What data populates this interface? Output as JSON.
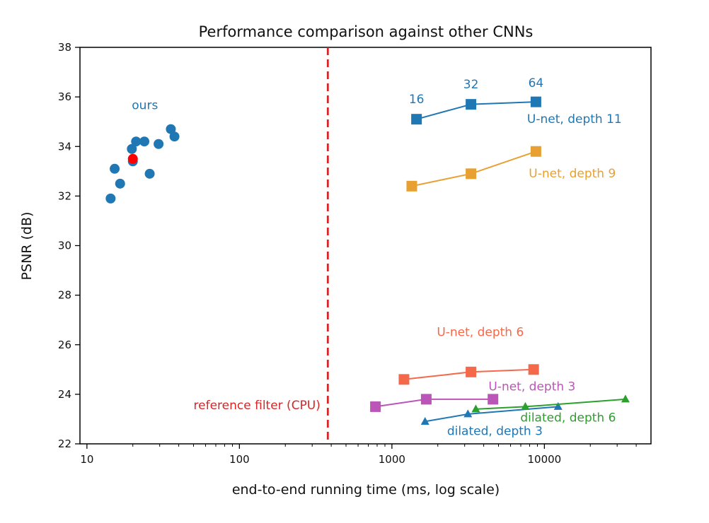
{
  "chart_data": {
    "type": "scatter",
    "title": "Performance comparison against other CNNs",
    "xlabel": "end-to-end running time (ms, log scale)",
    "ylabel": "PSNR (dB)",
    "x_scale": "log",
    "xlim": [
      9,
      50000
    ],
    "ylim": [
      22,
      38
    ],
    "x_ticks": [
      10,
      100,
      1000,
      10000
    ],
    "x_tick_labels": [
      "10",
      "100",
      "1000",
      "10000"
    ],
    "y_ticks": [
      22,
      24,
      26,
      28,
      30,
      32,
      34,
      36,
      38
    ],
    "y_tick_labels": [
      "22",
      "24",
      "26",
      "28",
      "30",
      "32",
      "34",
      "36",
      "38"
    ],
    "grid": false,
    "legend": "none",
    "reference": {
      "label": "reference filter (CPU)",
      "x": 380,
      "color": "#d62728"
    },
    "series": [
      {
        "name": "ours",
        "marker": "circle",
        "connected": false,
        "color": "#1f77b4",
        "points": [
          [
            14.3,
            31.9
          ],
          [
            15.2,
            33.1
          ],
          [
            16.5,
            32.5
          ],
          [
            19.7,
            33.9
          ],
          [
            20.0,
            33.4
          ],
          [
            21.0,
            34.2
          ],
          [
            23.8,
            34.2
          ],
          [
            25.8,
            32.9
          ],
          [
            29.5,
            34.1
          ],
          [
            35.5,
            34.7
          ],
          [
            37.5,
            34.4
          ]
        ]
      },
      {
        "name": "ours (highlighted)",
        "marker": "circle",
        "connected": false,
        "color": "#ff0000",
        "points": [
          [
            20.0,
            33.5
          ]
        ]
      },
      {
        "name": "U-net, depth 11",
        "marker": "square",
        "connected": true,
        "color": "#1f77b4",
        "points": [
          [
            1450,
            35.1
          ],
          [
            3300,
            35.7
          ],
          [
            8800,
            35.8
          ]
        ],
        "point_labels": [
          "16",
          "32",
          "64"
        ]
      },
      {
        "name": "U-net, depth 9",
        "marker": "square",
        "connected": true,
        "color": "#e8a033",
        "points": [
          [
            1350,
            32.4
          ],
          [
            3300,
            32.9
          ],
          [
            8800,
            33.8
          ]
        ]
      },
      {
        "name": "U-net, depth 6",
        "marker": "square",
        "connected": true,
        "color": "#f4694a",
        "points": [
          [
            1200,
            24.6
          ],
          [
            3300,
            24.9
          ],
          [
            8500,
            25.0
          ]
        ]
      },
      {
        "name": "U-net, depth 3",
        "marker": "square",
        "connected": true,
        "color": "#bb55b8",
        "points": [
          [
            780,
            23.5
          ],
          [
            1680,
            23.8
          ],
          [
            4600,
            23.8
          ]
        ]
      },
      {
        "name": "dilated, depth 3",
        "marker": "triangle",
        "connected": true,
        "color": "#1f77b4",
        "points": [
          [
            1650,
            22.9
          ],
          [
            3150,
            23.2
          ],
          [
            12300,
            23.5
          ]
        ]
      },
      {
        "name": "dilated, depth 6",
        "marker": "triangle",
        "connected": true,
        "color": "#2ca02c",
        "points": [
          [
            3550,
            23.4
          ],
          [
            7500,
            23.5
          ],
          [
            34000,
            23.8
          ]
        ]
      }
    ],
    "annotations": [
      {
        "text": "ours",
        "x": 24,
        "y": 35.5,
        "color": "#1f77b4",
        "anchor": "middle"
      },
      {
        "text": "16",
        "x": 1450,
        "y": 35.75,
        "color": "#1f77b4",
        "anchor": "middle"
      },
      {
        "text": "32",
        "x": 3300,
        "y": 36.35,
        "color": "#1f77b4",
        "anchor": "middle"
      },
      {
        "text": "64",
        "x": 8800,
        "y": 36.4,
        "color": "#1f77b4",
        "anchor": "middle"
      },
      {
        "text": "U-net, depth 11",
        "x": 7700,
        "y": 34.95,
        "color": "#1f77b4",
        "anchor": "start"
      },
      {
        "text": "U-net, depth 9",
        "x": 7900,
        "y": 32.75,
        "color": "#e8a033",
        "anchor": "start"
      },
      {
        "text": "U-net, depth 6",
        "x": 3800,
        "y": 26.35,
        "color": "#f4694a",
        "anchor": "middle"
      },
      {
        "text": "U-net, depth 3",
        "x": 4300,
        "y": 24.15,
        "color": "#bb55b8",
        "anchor": "start"
      },
      {
        "text": "reference filter (CPU)",
        "x": 340,
        "y": 23.4,
        "color": "#d62728",
        "anchor": "end"
      },
      {
        "text": "dilated, depth 3",
        "x": 2300,
        "y": 22.35,
        "color": "#1f77b4",
        "anchor": "start"
      },
      {
        "text": "dilated, depth 6",
        "x": 6950,
        "y": 22.9,
        "color": "#2ca02c",
        "anchor": "start"
      }
    ]
  }
}
